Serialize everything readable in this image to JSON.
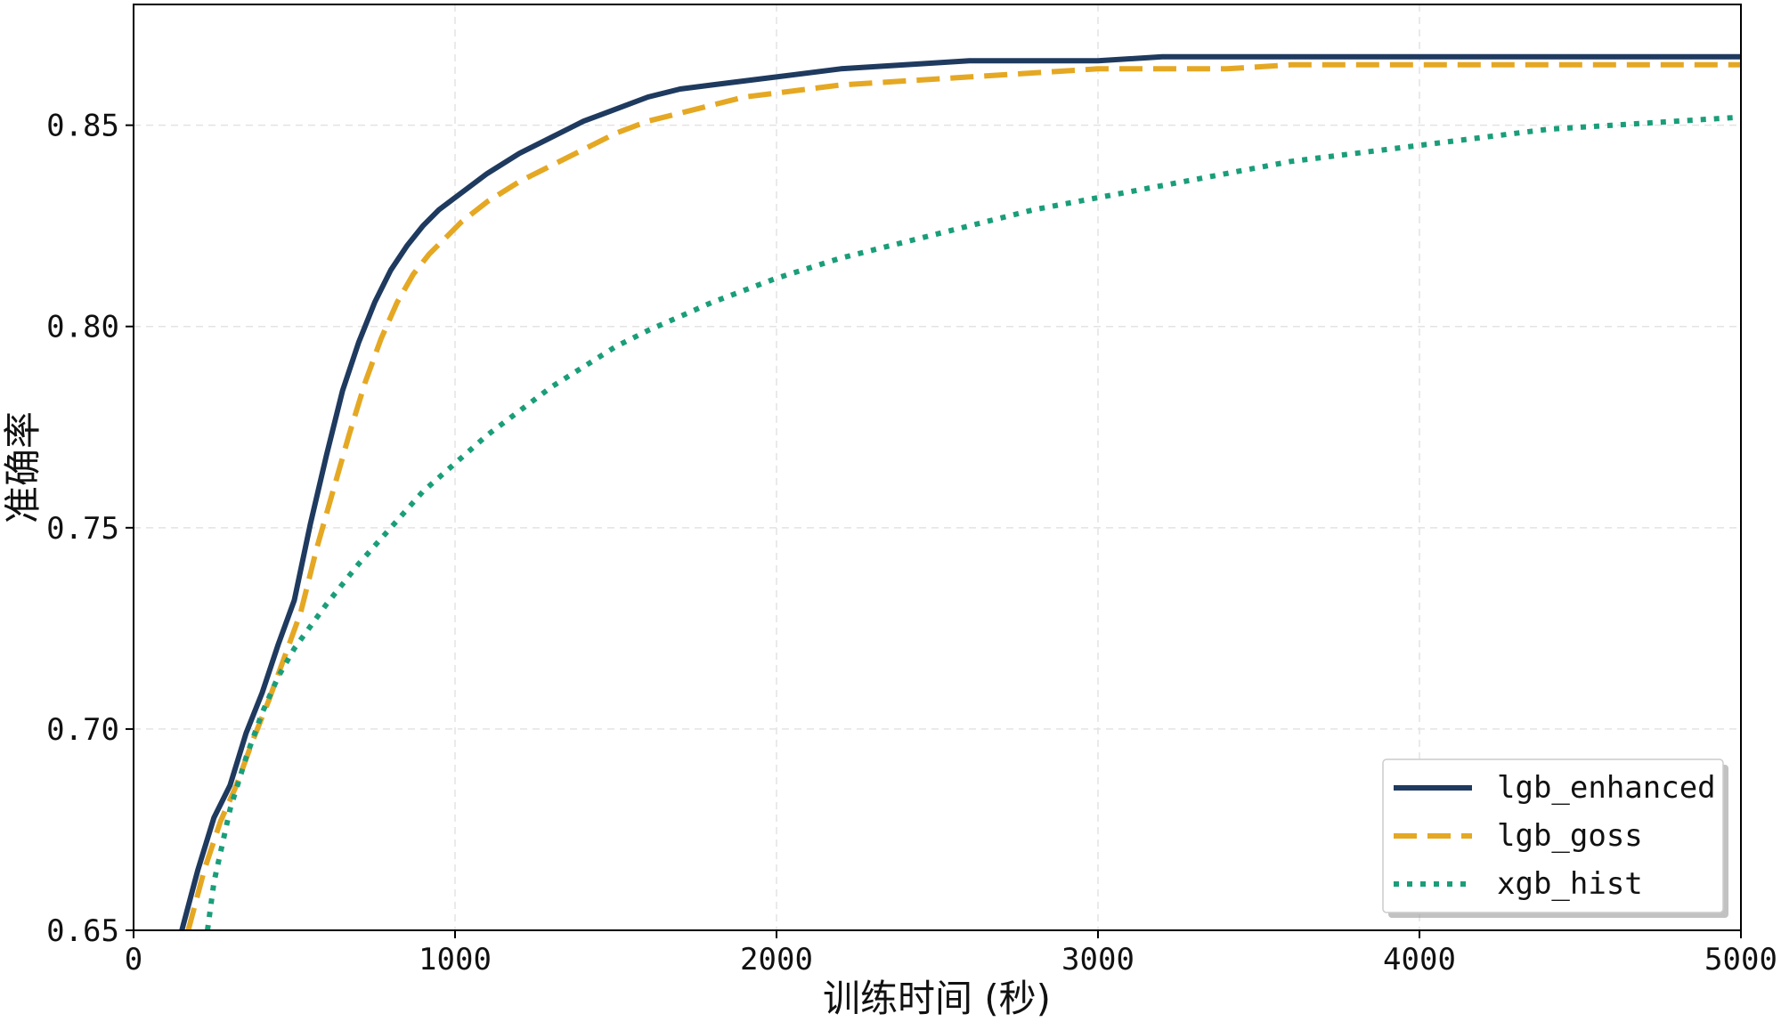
{
  "chart_data": {
    "type": "line",
    "xlabel": "训练时间 (秒)",
    "ylabel": "准确率",
    "xlim": [
      0,
      5000
    ],
    "ylim": [
      0.65,
      0.88
    ],
    "xticks": [
      0,
      1000,
      2000,
      3000,
      4000,
      5000
    ],
    "xtick_labels": [
      "0",
      "1000",
      "2000",
      "3000",
      "4000",
      "5000"
    ],
    "yticks": [
      0.65,
      0.7,
      0.75,
      0.8,
      0.85
    ],
    "ytick_labels": [
      "0.65",
      "0.70",
      "0.75",
      "0.80",
      "0.85"
    ],
    "grid": true,
    "legend_position": "bottom-right",
    "series": [
      {
        "name": "lgb_enhanced",
        "color": "#1f3a5f",
        "style": "solid",
        "x": [
          150,
          200,
          250,
          300,
          350,
          400,
          450,
          500,
          550,
          600,
          650,
          700,
          750,
          800,
          850,
          900,
          950,
          1000,
          1100,
          1200,
          1300,
          1400,
          1500,
          1600,
          1700,
          1800,
          1900,
          2000,
          2200,
          2400,
          2600,
          2800,
          3000,
          3200,
          3400,
          3600,
          3800,
          4000,
          4200,
          4400,
          4600,
          4800,
          5000
        ],
        "y": [
          0.65,
          0.665,
          0.678,
          0.686,
          0.699,
          0.709,
          0.721,
          0.732,
          0.751,
          0.768,
          0.784,
          0.796,
          0.806,
          0.814,
          0.82,
          0.825,
          0.829,
          0.832,
          0.838,
          0.843,
          0.847,
          0.851,
          0.854,
          0.857,
          0.859,
          0.86,
          0.861,
          0.862,
          0.864,
          0.865,
          0.866,
          0.866,
          0.866,
          0.867,
          0.867,
          0.867,
          0.867,
          0.867,
          0.867,
          0.867,
          0.867,
          0.867,
          0.867
        ]
      },
      {
        "name": "lgb_goss",
        "color": "#e5a823",
        "style": "dashed",
        "x": [
          170,
          220,
          270,
          320,
          370,
          420,
          470,
          520,
          570,
          620,
          670,
          720,
          770,
          820,
          870,
          920,
          970,
          1020,
          1100,
          1200,
          1300,
          1400,
          1500,
          1600,
          1700,
          1800,
          1900,
          2000,
          2200,
          2400,
          2600,
          2800,
          3000,
          3200,
          3400,
          3600,
          3800,
          4000,
          4200,
          4400,
          4600,
          4800,
          5000
        ],
        "y": [
          0.65,
          0.665,
          0.677,
          0.686,
          0.697,
          0.707,
          0.718,
          0.729,
          0.745,
          0.759,
          0.773,
          0.786,
          0.797,
          0.806,
          0.813,
          0.818,
          0.822,
          0.826,
          0.831,
          0.836,
          0.84,
          0.844,
          0.848,
          0.851,
          0.853,
          0.855,
          0.857,
          0.858,
          0.86,
          0.861,
          0.862,
          0.863,
          0.864,
          0.864,
          0.864,
          0.865,
          0.865,
          0.865,
          0.865,
          0.865,
          0.865,
          0.865,
          0.865
        ]
      },
      {
        "name": "xgb_hist",
        "color": "#1a9e7a",
        "style": "dotted",
        "x": [
          230,
          250,
          300,
          350,
          400,
          450,
          500,
          600,
          700,
          800,
          900,
          1000,
          1100,
          1200,
          1300,
          1400,
          1500,
          1600,
          1800,
          2000,
          2200,
          2400,
          2600,
          2800,
          3000,
          3200,
          3400,
          3600,
          3800,
          4000,
          4200,
          4400,
          4600,
          4800,
          5000
        ],
        "y": [
          0.65,
          0.662,
          0.68,
          0.693,
          0.704,
          0.713,
          0.72,
          0.731,
          0.741,
          0.75,
          0.759,
          0.766,
          0.773,
          0.779,
          0.785,
          0.79,
          0.795,
          0.799,
          0.806,
          0.812,
          0.817,
          0.821,
          0.825,
          0.829,
          0.832,
          0.835,
          0.838,
          0.841,
          0.843,
          0.845,
          0.847,
          0.849,
          0.85,
          0.851,
          0.852
        ]
      }
    ]
  }
}
